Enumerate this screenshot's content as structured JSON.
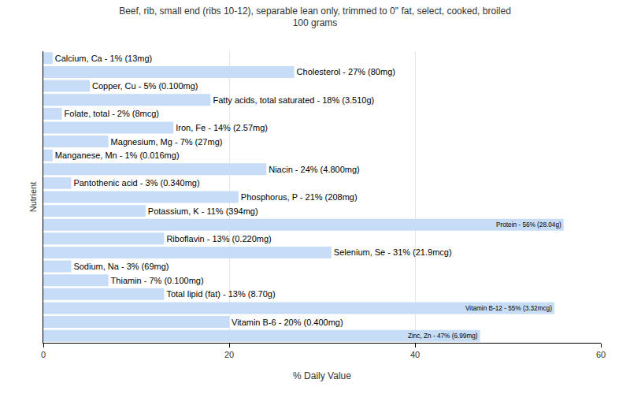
{
  "chart_data": {
    "type": "bar",
    "orientation": "horizontal",
    "title": "Beef, rib, small end (ribs 10-12), separable lean only, trimmed to 0\" fat, select, cooked, broiled",
    "subtitle": "100 grams",
    "x_label": "% Daily Value",
    "y_label": "Nutrient",
    "categories": [
      "Calcium, Ca",
      "Cholesterol",
      "Copper, Cu",
      "Fatty acids, total saturated",
      "Folate, total",
      "Iron, Fe",
      "Magnesium, Mg",
      "Manganese, Mn",
      "Niacin",
      "Pantothenic acid",
      "Phosphorus, P",
      "Potassium, K",
      "Protein",
      "Riboflavin",
      "Selenium, Se",
      "Sodium, Na",
      "Thiamin",
      "Total lipid (fat)",
      "Vitamin B-12",
      "Vitamin B-6",
      "Zinc, Zn"
    ],
    "values": [
      1,
      27,
      5,
      18,
      2,
      14,
      7,
      1,
      24,
      3,
      21,
      11,
      56,
      13,
      31,
      3,
      7,
      13,
      55,
      20,
      47
    ],
    "value_labels": [
      "Calcium, Ca - 1% (13mg)",
      "Cholesterol - 27% (80mg)",
      "Copper, Cu - 5% (0.100mg)",
      "Fatty acids, total saturated - 18% (3.510g)",
      "Folate, total - 2% (8mcg)",
      "Iron, Fe - 14% (2.57mg)",
      "Magnesium, Mg - 7% (27mg)",
      "Manganese, Mn - 1% (0.016mg)",
      "Niacin - 24% (4.800mg)",
      "Pantothenic acid - 3% (0.340mg)",
      "Phosphorus, P - 21% (208mg)",
      "Potassium, K - 11% (394mg)",
      "Protein - 56% (28.04g)",
      "Riboflavin - 13% (0.220mg)",
      "Selenium, Se - 31% (21.9mcg)",
      "Sodium, Na - 3% (69mg)",
      "Thiamin - 7% (0.100mg)",
      "Total lipid (fat) - 13% (8.70g)",
      "Vitamin B-12 - 55% (3.32mcg)",
      "Vitamin B-6 - 20% (0.400mg)",
      "Zinc, Zn - 47% (6.99mg)"
    ],
    "data_labels": true,
    "color": "#c6dcf7",
    "xlim": [
      0,
      60
    ],
    "xticks": [
      0,
      20,
      40,
      60
    ],
    "grid": true,
    "tick_labels": "x"
  }
}
